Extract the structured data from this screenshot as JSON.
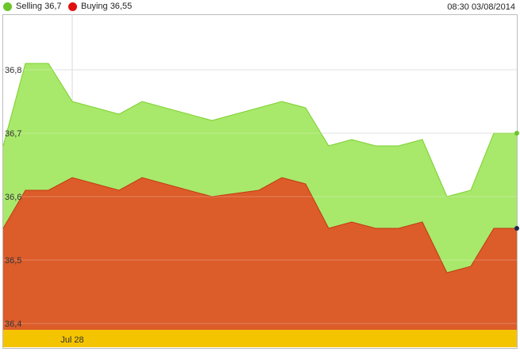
{
  "legend": {
    "selling_label": "Selling 36,7",
    "buying_label": "Buying 36,55",
    "timestamp": "08:30 03/08/2014"
  },
  "colors": {
    "selling": "#a8e86b",
    "selling_line": "#7ad12b",
    "buying": "#dc5c2a",
    "buying_line": "#c23b12",
    "selling_dot": "#6cc52b",
    "buying_dot": "#e01010",
    "axis_bar": "#f5c400",
    "grid": "#d8d8d8"
  },
  "chart_data": {
    "type": "area",
    "title": "",
    "xlabel": "",
    "ylabel": "",
    "ylim": [
      36.4,
      36.9
    ],
    "yticks": [
      36.4,
      36.5,
      36.6,
      36.7,
      36.8
    ],
    "ytick_labels": [
      "36,4",
      "36,5",
      "36,6",
      "36,7",
      "36,8"
    ],
    "x_tick_label": "Jul 28",
    "x_tick_index": 3,
    "grid": true,
    "legend_position": "top-left",
    "series": [
      {
        "name": "Selling",
        "values": [
          36.68,
          36.81,
          36.81,
          36.75,
          36.73,
          36.75,
          36.72,
          36.72,
          36.74,
          36.75,
          36.74,
          36.68,
          36.69,
          36.68,
          36.68,
          36.69,
          36.6,
          36.61,
          36.7,
          36.7
        ]
      },
      {
        "name": "Buying",
        "values": [
          36.55,
          36.61,
          36.61,
          36.63,
          36.61,
          36.63,
          36.6,
          36.6,
          36.61,
          36.63,
          36.62,
          36.55,
          36.56,
          36.55,
          36.55,
          36.56,
          36.48,
          36.49,
          36.55,
          36.55
        ]
      }
    ],
    "x_index": [
      0,
      1.0,
      2.0,
      3.0,
      5.0,
      6.0,
      9.0,
      9.0,
      11.0,
      12.0,
      13.0,
      14.0,
      15.0,
      16.0,
      17.0,
      18.0,
      19.0,
      20.0,
      21.0,
      22.0
    ]
  }
}
